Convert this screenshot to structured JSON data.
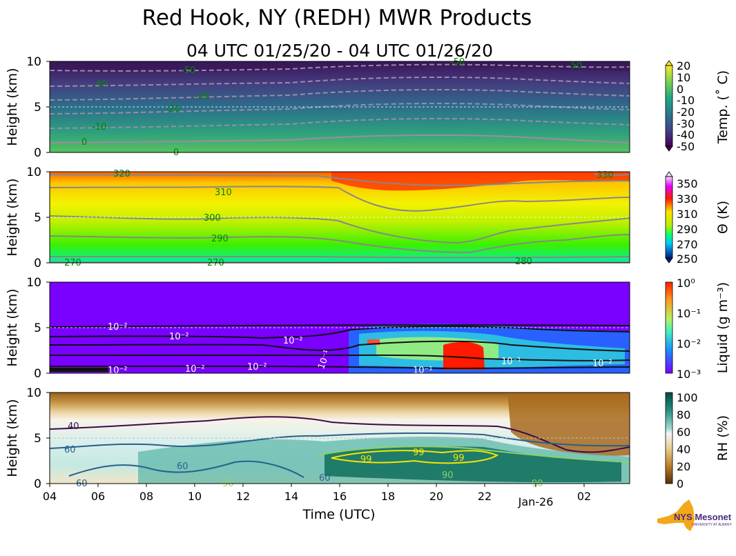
{
  "figure": {
    "title": "Red Hook, NY (REDH) MWR Products",
    "subtitle": "04 UTC 01/25/20 - 04 UTC 01/26/20",
    "xlabel": "Time (UTC)",
    "xticks": [
      "04",
      "06",
      "08",
      "10",
      "12",
      "14",
      "16",
      "18",
      "20",
      "22",
      "Jan-26",
      "02"
    ],
    "logo_text": "NYS Mesonet",
    "logo_subtext": "UNIVERSITY AT ALBANY"
  },
  "chart_data": [
    {
      "type": "heatmap",
      "id": "temperature",
      "ylabel": "Height (km)",
      "ylim": [
        0,
        10
      ],
      "yticks": [
        "0",
        "5",
        "10"
      ],
      "colorbar_label": "Temp. (˚ C)",
      "colorbar_ticks": [
        "20",
        "10",
        "0",
        "-10",
        "-20",
        "-30",
        "-40",
        "-50"
      ],
      "colorbar_range": [
        -50,
        20
      ],
      "contour_labels": [
        "-50",
        "-50",
        "-50",
        "-40",
        "-30",
        "-20",
        "-10",
        "0",
        "0"
      ],
      "contour_levels": [
        0,
        -10,
        -20,
        -30,
        -40,
        -50
      ]
    },
    {
      "type": "heatmap",
      "id": "potential_temperature",
      "ylabel": "Height (km)",
      "ylim": [
        0,
        10
      ],
      "yticks": [
        "0",
        "5",
        "10"
      ],
      "colorbar_label": "Θ (K)",
      "colorbar_ticks": [
        "350",
        "330",
        "310",
        "290",
        "270",
        "250"
      ],
      "colorbar_range": [
        250,
        360
      ],
      "contour_labels": [
        "320",
        "310",
        "300",
        "290",
        "270",
        "270",
        "280",
        "330"
      ],
      "contour_levels": [
        270,
        280,
        290,
        300,
        310,
        320,
        330
      ]
    },
    {
      "type": "heatmap",
      "id": "liquid",
      "ylabel": "Height (km)",
      "ylim": [
        0,
        10
      ],
      "yticks": [
        "0",
        "5",
        "10"
      ],
      "colorbar_label": "Liquid (g m⁻³)",
      "colorbar_ticks": [
        "10⁰",
        "10⁻¹",
        "10⁻²",
        "10⁻³"
      ],
      "colorbar_range": [
        0.001,
        1
      ],
      "colorbar_scale": "log",
      "contour_labels": [
        "10⁻²",
        "10⁻²",
        "10⁻²",
        "10⁻²",
        "10⁻²",
        "10⁻²",
        "10⁻¹",
        "10⁻¹",
        "10⁻¹",
        "10⁻²"
      ]
    },
    {
      "type": "heatmap",
      "id": "relative_humidity",
      "ylabel": "Height (km)",
      "ylim": [
        0,
        10
      ],
      "yticks": [
        "0",
        "5",
        "10"
      ],
      "colorbar_label": "RH (%)",
      "colorbar_ticks": [
        "100",
        "80",
        "60",
        "40",
        "20",
        "0"
      ],
      "colorbar_range": [
        0,
        105
      ],
      "contour_labels": [
        "40",
        "60",
        "60",
        "60",
        "60",
        "99",
        "99",
        "99",
        "90",
        "90",
        "90"
      ],
      "contour_levels": [
        40,
        60,
        90,
        99
      ]
    }
  ]
}
